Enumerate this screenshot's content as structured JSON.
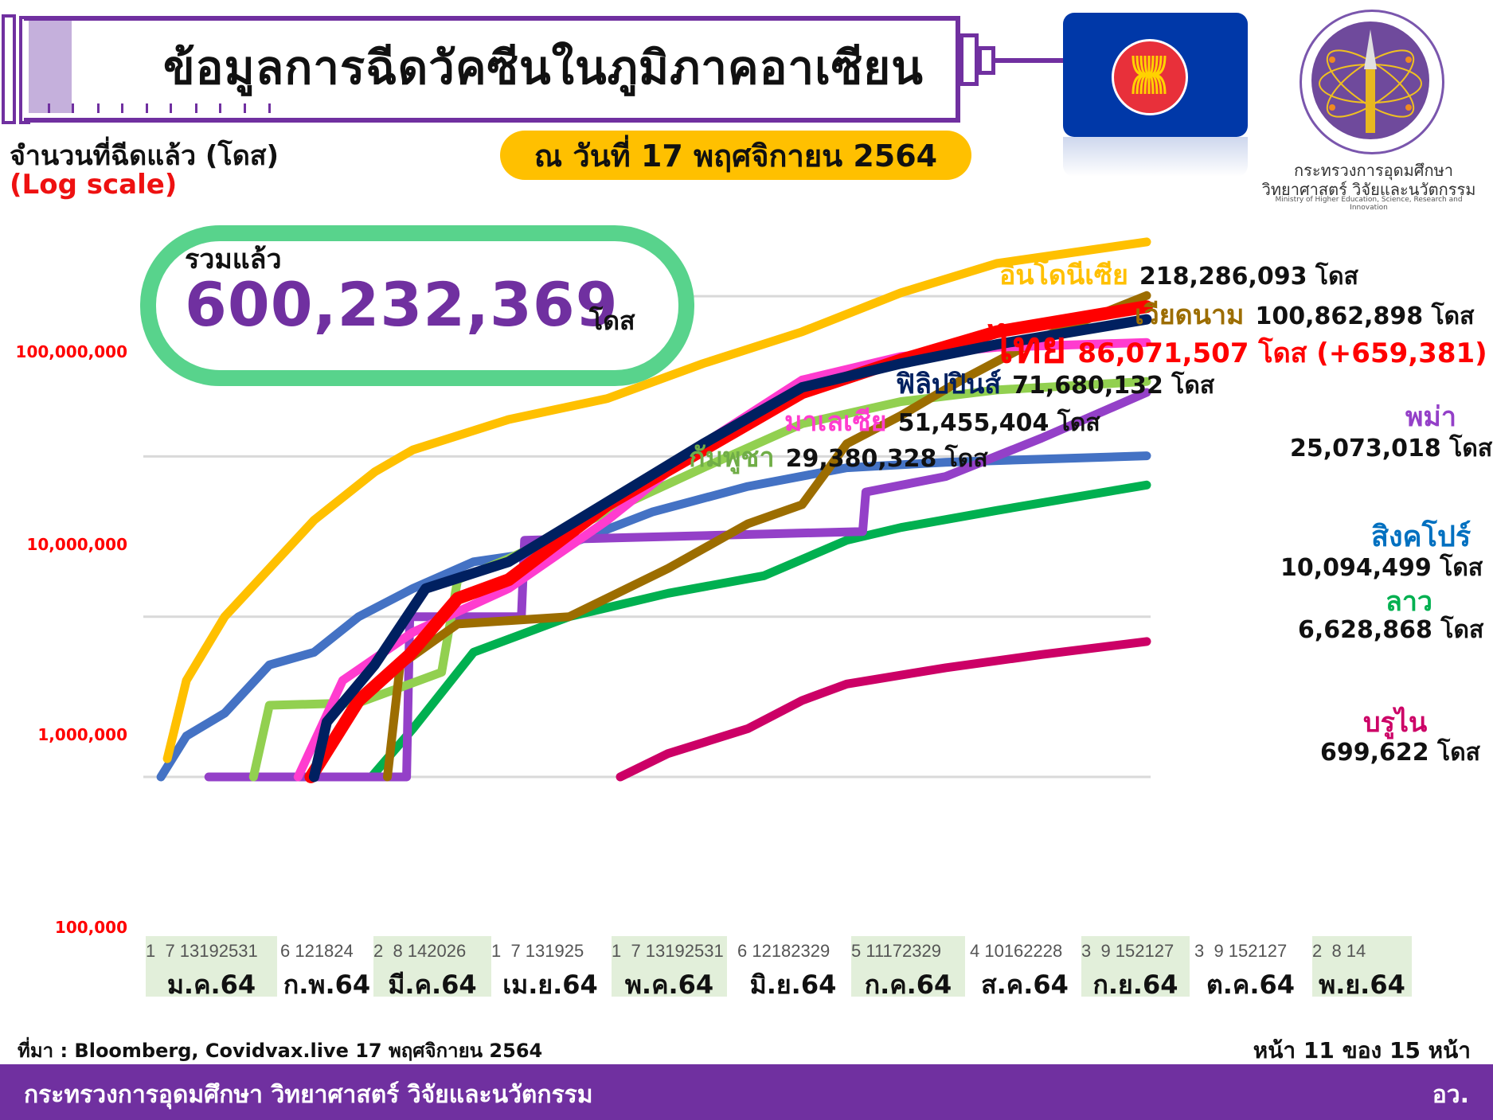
{
  "header": {
    "title": "ข้อมูลการฉีดวัคซีนในภูมิภาคอาเซียน",
    "date_label": "ณ วันที่ 17 พฤศจิกายน 2564",
    "y_label": "จำนวนที่ฉีดแล้ว (โดส)",
    "y_scale_note": "(Log scale)"
  },
  "logo": {
    "ministry_th_line1": "กระทรวงการอุดมศึกษา",
    "ministry_th_line2": "วิทยาศาสตร์ วิจัยและนวัตกรรม",
    "ministry_en": "Ministry of Higher Education, Science, Research and Innovation",
    "flag_icon": "asean-flag-icon"
  },
  "total": {
    "label": "รวมแล้ว",
    "value": "600,232,369",
    "unit": "โดส"
  },
  "labels": {
    "indonesia": {
      "name": "อินโดนีเซีย",
      "value": "218,286,093 โดส"
    },
    "vietnam": {
      "name": "เวียดนาม",
      "value": "100,862,898 โดส"
    },
    "thailand": {
      "name": "ไทย",
      "value": "86,071,507 โดส (+659,381)"
    },
    "philippines": {
      "name": "ฟิลิปปินส์",
      "value": "71,680,132 โดส"
    },
    "malaysia": {
      "name": "มาเลเซีย",
      "value": "51,455,404 โดส"
    },
    "cambodia": {
      "name": "กัมพูชา",
      "value": "29,380,328 โดส"
    },
    "myanmar": {
      "name": "พม่า",
      "value": "25,073,018 โดส"
    },
    "singapore": {
      "name": "สิงคโปร์",
      "value": "10,094,499 โดส"
    },
    "laos": {
      "name": "ลาว",
      "value": "6,628,868 โดส"
    },
    "brunei": {
      "name": "บรูไน",
      "value": "699,622 โดส"
    }
  },
  "x_axis": {
    "months": [
      {
        "label": "ม.ค.64",
        "days": "1  7 13192531",
        "shaded": true
      },
      {
        "label": "ก.พ.64",
        "days": "6 121824",
        "shaded": false
      },
      {
        "label": "มี.ค.64",
        "days": "2  8 142026",
        "shaded": true
      },
      {
        "label": "เม.ย.64",
        "days": "1  7 131925",
        "shaded": false
      },
      {
        "label": "พ.ค.64",
        "days": "1  7 13192531",
        "shaded": true
      },
      {
        "label": "มิ.ย.64",
        "days": "6 12182329",
        "shaded": false
      },
      {
        "label": "ก.ค.64",
        "days": "5 11172329",
        "shaded": true
      },
      {
        "label": "ส.ค.64",
        "days": "4 10162228",
        "shaded": false
      },
      {
        "label": "ก.ย.64",
        "days": "3  9 152127",
        "shaded": true
      },
      {
        "label": "ต.ค.64",
        "days": "3  9 152127",
        "shaded": false
      },
      {
        "label": "พ.ย.64",
        "days": "2  8 14",
        "shaded": true
      }
    ]
  },
  "y_axis": {
    "ticks": [
      "100,000,000",
      "10,000,000",
      "1,000,000",
      "100,000"
    ]
  },
  "footer": {
    "source": "ที่มา : Bloomberg, Covidvax.live 17 พฤศจิกายน 2564",
    "page": "หน้า 11 ของ 15 หน้า",
    "org": "กระทรวงการอุดมศึกษา วิทยาศาสตร์ วิจัยและนวัตกรรม",
    "org_abbr": "อว."
  },
  "chart_data": {
    "type": "line",
    "title": "ข้อมูลการฉีดวัคซีนในภูมิภาคอาเซียน",
    "subtitle": "ณ วันที่ 17 พฤศจิกายน 2564",
    "ylabel": "จำนวนที่ฉีดแล้ว (โดส) (Log scale)",
    "xlabel": "",
    "y_scale": "log",
    "ylim": [
      100000,
      300000000
    ],
    "y_ticks": [
      100000,
      1000000,
      10000000,
      100000000
    ],
    "x_range": [
      "2021-01-01",
      "2021-11-17"
    ],
    "x_categories": [
      "ม.ค.64",
      "ก.พ.64",
      "มี.ค.64",
      "เม.ย.64",
      "พ.ค.64",
      "มิ.ย.64",
      "ก.ค.64",
      "ส.ค.64",
      "ก.ย.64",
      "ต.ค.64",
      "พ.ย.64"
    ],
    "grid": true,
    "total_doses": 600232369,
    "series": [
      {
        "name": "อินโดนีเซีย",
        "color": "#ffc000",
        "final": 218286093,
        "points": [
          [
            "2021-01-14",
            130000
          ],
          [
            "2021-01-20",
            400000
          ],
          [
            "2021-02-01",
            1000000
          ],
          [
            "2021-02-15",
            2000000
          ],
          [
            "2021-03-01",
            4000000
          ],
          [
            "2021-03-20",
            8000000
          ],
          [
            "2021-04-01",
            11000000
          ],
          [
            "2021-05-01",
            17000000
          ],
          [
            "2021-06-01",
            23000000
          ],
          [
            "2021-07-01",
            38000000
          ],
          [
            "2021-08-01",
            60000000
          ],
          [
            "2021-09-01",
            105000000
          ],
          [
            "2021-10-01",
            160000000
          ],
          [
            "2021-11-17",
            218286093
          ]
        ]
      },
      {
        "name": "เวียดนาม",
        "color": "#9c6d00",
        "final": 100862898,
        "points": [
          [
            "2021-03-24",
            100000
          ],
          [
            "2021-03-28",
            500000
          ],
          [
            "2021-04-15",
            900000
          ],
          [
            "2021-05-20",
            1000000
          ],
          [
            "2021-06-20",
            2000000
          ],
          [
            "2021-07-15",
            3800000
          ],
          [
            "2021-08-01",
            5000000
          ],
          [
            "2021-08-15",
            12000000
          ],
          [
            "2021-09-01",
            18000000
          ],
          [
            "2021-09-20",
            30000000
          ],
          [
            "2021-10-15",
            55000000
          ],
          [
            "2021-11-17",
            100862898
          ]
        ]
      },
      {
        "name": "ไทย",
        "color": "#ff0000",
        "final": 86071507,
        "points": [
          [
            "2021-02-28",
            100000
          ],
          [
            "2021-03-15",
            300000
          ],
          [
            "2021-03-31",
            580000
          ],
          [
            "2021-04-15",
            1300000
          ],
          [
            "2021-05-01",
            1700000
          ],
          [
            "2021-06-01",
            5000000
          ],
          [
            "2021-07-01",
            11000000
          ],
          [
            "2021-08-01",
            25000000
          ],
          [
            "2021-09-01",
            40000000
          ],
          [
            "2021-10-01",
            60000000
          ],
          [
            "2021-11-17",
            86071507
          ]
        ]
      },
      {
        "name": "ฟิลิปปินส์",
        "color": "#002060",
        "final": 71680132,
        "points": [
          [
            "2021-03-01",
            100000
          ],
          [
            "2021-03-05",
            220000
          ],
          [
            "2021-03-20",
            500000
          ],
          [
            "2021-04-05",
            1500000
          ],
          [
            "2021-05-01",
            2200000
          ],
          [
            "2021-06-01",
            5200000
          ],
          [
            "2021-07-01",
            12000000
          ],
          [
            "2021-08-01",
            27000000
          ],
          [
            "2021-09-01",
            38000000
          ],
          [
            "2021-10-01",
            50000000
          ],
          [
            "2021-11-17",
            71680132
          ]
        ]
      },
      {
        "name": "มาเลเซีย",
        "color": "#ff3ccf",
        "final": 51455404,
        "points": [
          [
            "2021-02-24",
            100000
          ],
          [
            "2021-03-10",
            400000
          ],
          [
            "2021-04-01",
            800000
          ],
          [
            "2021-05-01",
            1500000
          ],
          [
            "2021-06-01",
            4000000
          ],
          [
            "2021-07-01",
            12000000
          ],
          [
            "2021-08-01",
            30000000
          ],
          [
            "2021-09-01",
            42000000
          ],
          [
            "2021-10-01",
            48000000
          ],
          [
            "2021-11-17",
            51455404
          ]
        ]
      },
      {
        "name": "กัมพูชา",
        "color": "#92d050",
        "final": 29380328,
        "points": [
          [
            "2021-02-10",
            100000
          ],
          [
            "2021-02-15",
            280000
          ],
          [
            "2021-03-15",
            290000
          ],
          [
            "2021-04-10",
            450000
          ],
          [
            "2021-04-15",
            1700000
          ],
          [
            "2021-05-01",
            2300000
          ],
          [
            "2021-06-01",
            4500000
          ],
          [
            "2021-07-01",
            8500000
          ],
          [
            "2021-08-01",
            16000000
          ],
          [
            "2021-09-01",
            22000000
          ],
          [
            "2021-10-01",
            26000000
          ],
          [
            "2021-11-17",
            29380328
          ]
        ]
      },
      {
        "name": "พม่า",
        "color": "#9440c8",
        "final": 25073018,
        "points": [
          [
            "2021-01-27",
            100000
          ],
          [
            "2021-03-30",
            100000
          ],
          [
            "2021-03-31",
            1000000
          ],
          [
            "2021-05-05",
            1000000
          ],
          [
            "2021-05-06",
            3000000
          ],
          [
            "2021-08-20",
            3400000
          ],
          [
            "2021-08-21",
            6000000
          ],
          [
            "2021-09-15",
            7500000
          ],
          [
            "2021-10-15",
            13000000
          ],
          [
            "2021-11-17",
            25073018
          ]
        ]
      },
      {
        "name": "สิงคโปร์",
        "color": "#4472c4",
        "final": 10094499,
        "points": [
          [
            "2021-01-12",
            100000
          ],
          [
            "2021-01-20",
            180000
          ],
          [
            "2021-02-01",
            250000
          ],
          [
            "2021-02-15",
            500000
          ],
          [
            "2021-03-01",
            600000
          ],
          [
            "2021-03-15",
            1000000
          ],
          [
            "2021-04-01",
            1500000
          ],
          [
            "2021-04-20",
            2200000
          ],
          [
            "2021-05-15",
            2600000
          ],
          [
            "2021-06-15",
            4500000
          ],
          [
            "2021-07-15",
            6500000
          ],
          [
            "2021-08-15",
            8500000
          ],
          [
            "2021-09-15",
            9200000
          ],
          [
            "2021-11-17",
            10094499
          ]
        ]
      },
      {
        "name": "ลาว",
        "color": "#00b050",
        "final": 6628868,
        "points": [
          [
            "2021-03-19",
            100000
          ],
          [
            "2021-04-01",
            200000
          ],
          [
            "2021-04-20",
            600000
          ],
          [
            "2021-05-20",
            1000000
          ],
          [
            "2021-06-20",
            1400000
          ],
          [
            "2021-07-20",
            1800000
          ],
          [
            "2021-08-15",
            3000000
          ],
          [
            "2021-09-01",
            3600000
          ],
          [
            "2021-10-01",
            4600000
          ],
          [
            "2021-11-17",
            6628868
          ]
        ]
      },
      {
        "name": "บรูไน",
        "color": "#cc0066",
        "final": 699622,
        "points": [
          [
            "2021-06-05",
            100000
          ],
          [
            "2021-06-20",
            140000
          ],
          [
            "2021-07-15",
            200000
          ],
          [
            "2021-08-01",
            300000
          ],
          [
            "2021-08-15",
            380000
          ],
          [
            "2021-09-15",
            480000
          ],
          [
            "2021-10-15",
            580000
          ],
          [
            "2021-11-17",
            699622
          ]
        ]
      }
    ]
  }
}
